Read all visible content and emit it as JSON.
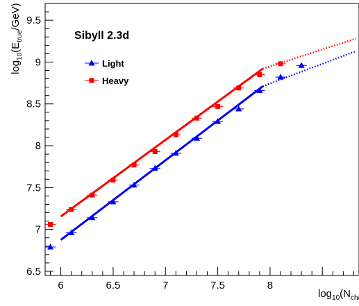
{
  "chart_data": {
    "type": "scatter",
    "title": "Sibyll 2.3d",
    "xlabel": {
      "main": "log",
      "sub1": "10",
      "mid": "(N",
      "sub2": "ch/…",
      "end": ")"
    },
    "ylabel": {
      "main": "log",
      "sub1": "10",
      "mid": "(E",
      "sub2": "true",
      "end": "/GeV)"
    },
    "xlim": [
      5.85,
      8.85
    ],
    "ylim": [
      6.45,
      9.7
    ],
    "xticks": [
      6,
      6.5,
      7,
      7.5,
      8
    ],
    "xtick_labels": [
      "6",
      "6.5",
      "7",
      "7.5",
      "8"
    ],
    "yticks": [
      6.5,
      7,
      7.5,
      8,
      8.5,
      9,
      9.5
    ],
    "ytick_labels": [
      "6.5",
      "7",
      "7.5",
      "8",
      "8.5",
      "9",
      "9.5"
    ],
    "x_bin_halfwidth": 0.05,
    "legend_position": "top-left",
    "series": [
      {
        "name": "Light",
        "color": "#0000ff",
        "marker": "triangle",
        "x": [
          5.9,
          6.1,
          6.3,
          6.5,
          6.7,
          6.9,
          7.1,
          7.3,
          7.5,
          7.7,
          7.9,
          8.1,
          8.3
        ],
        "y": [
          6.79,
          6.96,
          7.14,
          7.33,
          7.53,
          7.73,
          7.91,
          8.09,
          8.29,
          8.44,
          8.66,
          8.82,
          8.96
        ],
        "fit_solid": [
          [
            6.0,
            6.875
          ],
          [
            7.93,
            8.71
          ]
        ],
        "fit_dotted": [
          [
            7.93,
            8.71
          ],
          [
            8.82,
            9.13
          ]
        ]
      },
      {
        "name": "Heavy",
        "color": "#ff0000",
        "marker": "square",
        "x": [
          5.9,
          6.1,
          6.3,
          6.5,
          6.7,
          6.9,
          7.1,
          7.3,
          7.5,
          7.7,
          7.9,
          8.1
        ],
        "y": [
          7.06,
          7.24,
          7.41,
          7.59,
          7.77,
          7.93,
          8.13,
          8.33,
          8.47,
          8.69,
          8.85,
          8.98
        ],
        "fit_solid": [
          [
            6.0,
            7.155
          ],
          [
            7.93,
            8.92
          ]
        ],
        "fit_dotted": [
          [
            7.93,
            8.92
          ],
          [
            8.82,
            9.28
          ]
        ]
      }
    ]
  }
}
